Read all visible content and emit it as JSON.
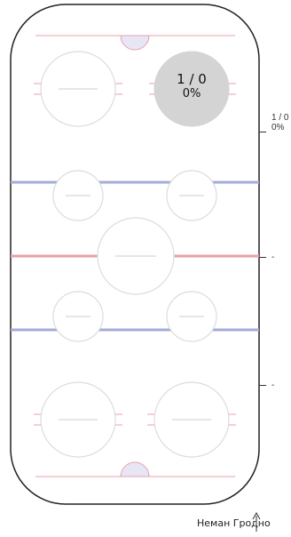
{
  "zones": {
    "top": {
      "count": "1 / 0",
      "percent": "0%"
    },
    "middle": {
      "label": "-"
    },
    "bottom": {
      "label": "-"
    }
  },
  "highlight_circle": {
    "count": "1 / 0",
    "percent": "0%"
  },
  "team": {
    "name": "Неман Гродно",
    "arrow_icon": "arrow-up-icon"
  },
  "colors": {
    "outline": "#222222",
    "red_line": "#e9a0aa",
    "blue_line": "#a3acd6",
    "circle_stroke": "#dcdcdc",
    "highlight_fill": "#d4d4d4",
    "crease_fill": "#e8e6f5"
  }
}
